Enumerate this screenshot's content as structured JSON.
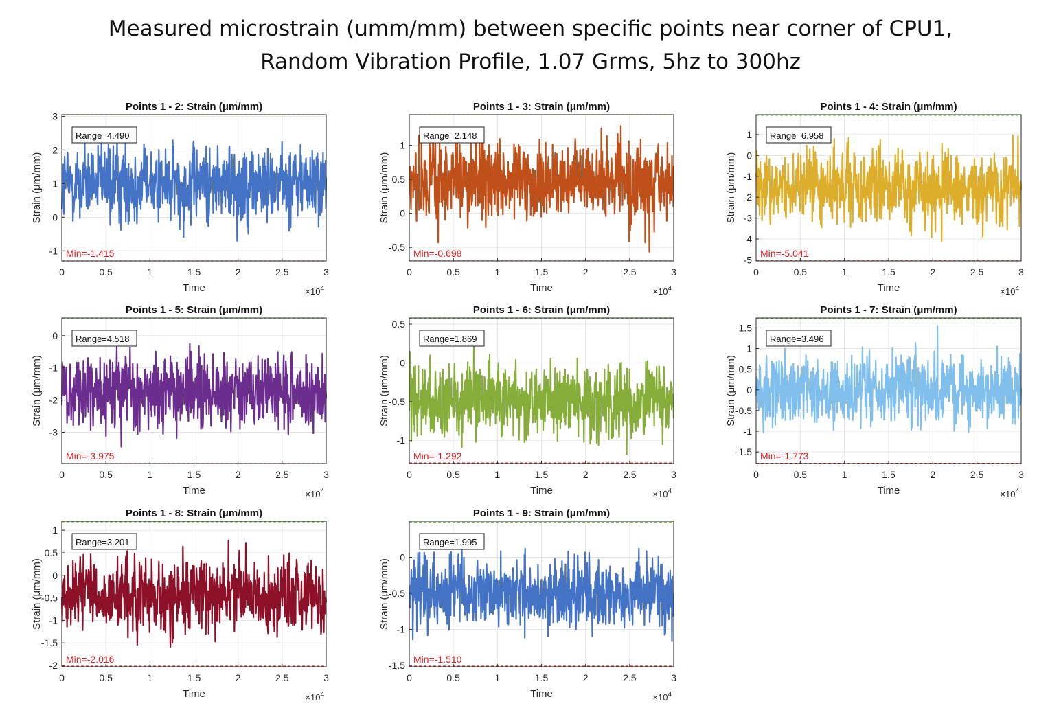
{
  "figure": {
    "title_line1": "Measured microstrain (umm/mm) between specific points near corner of CPU1,",
    "title_line2": "Random Vibration Profile, 1.07 Grms, 5hz to 300hz"
  },
  "chart_data": [
    {
      "type": "line",
      "title": "Points 1 - 2: Strain (μm/mm)",
      "xlabel": "Time",
      "ylabel": "Strain (μm/mm)",
      "x_multiplier": "×10^4",
      "xlim": [
        0,
        30000
      ],
      "xticks": [
        0,
        0.5,
        1,
        1.5,
        2,
        2.5,
        3
      ],
      "ylim": [
        -1.3,
        3.05
      ],
      "yticks": [
        -1,
        0,
        1,
        2,
        3
      ],
      "mean": 1.0,
      "amplitude": 1.45,
      "max": 3.075,
      "min": -1.415,
      "range_label": "Range=4.490",
      "min_label": "Min=-1.415",
      "color": "#4472C4",
      "grid": true
    },
    {
      "type": "line",
      "title": "Points 1 - 3: Strain (μm/mm)",
      "xlabel": "Time",
      "ylabel": "Strain (μm/mm)",
      "x_multiplier": "×10^4",
      "xlim": [
        0,
        30000
      ],
      "xticks": [
        0,
        0.5,
        1,
        1.5,
        2,
        2.5,
        3
      ],
      "ylim": [
        -0.7,
        1.45
      ],
      "yticks": [
        -0.5,
        0,
        0.5,
        1
      ],
      "mean": 0.45,
      "amplitude": 0.72,
      "max": 1.45,
      "min": -0.698,
      "range_label": "Range=2.148",
      "min_label": "Min=-0.698",
      "color": "#C0501A",
      "grid": true
    },
    {
      "type": "line",
      "title": "Points 1 - 4: Strain (μm/mm)",
      "xlabel": "Time",
      "ylabel": "Strain (μm/mm)",
      "x_multiplier": "×10^4",
      "xlim": [
        0,
        30000
      ],
      "xticks": [
        0,
        0.5,
        1,
        1.5,
        2,
        2.5,
        3
      ],
      "ylim": [
        -5.05,
        1.95
      ],
      "yticks": [
        -5,
        -4,
        -3,
        -2,
        -1,
        0,
        1
      ],
      "mean": -1.55,
      "amplitude": 2.25,
      "max": 1.917,
      "min": -5.041,
      "range_label": "Range=6.958",
      "min_label": "Min=-5.041",
      "color": "#DDAE2C",
      "grid": true
    },
    {
      "type": "line",
      "title": "Points 1 - 5: Strain (μm/mm)",
      "xlabel": "Time",
      "ylabel": "Strain (μm/mm)",
      "x_multiplier": "×10^4",
      "xlim": [
        0,
        30000
      ],
      "xticks": [
        0,
        0.5,
        1,
        1.5,
        2,
        2.5,
        3
      ],
      "ylim": [
        -3.97,
        0.55
      ],
      "yticks": [
        -3,
        -2,
        -1,
        0
      ],
      "mean": -1.75,
      "amplitude": 1.45,
      "max": 0.543,
      "min": -3.975,
      "range_label": "Range=4.518",
      "min_label": "Min=-3.975",
      "color": "#6B2D8E",
      "grid": true
    },
    {
      "type": "line",
      "title": "Points 1 - 6: Strain (μm/mm)",
      "xlabel": "Time",
      "ylabel": "Strain (μm/mm)",
      "x_multiplier": "×10^4",
      "xlim": [
        0,
        30000
      ],
      "xticks": [
        0,
        0.5,
        1,
        1.5,
        2,
        2.5,
        3
      ],
      "ylim": [
        -1.3,
        0.58
      ],
      "yticks": [
        -1,
        -0.5,
        0,
        0.5
      ],
      "mean": -0.5,
      "amplitude": 0.6,
      "max": 0.577,
      "min": -1.292,
      "range_label": "Range=1.869",
      "min_label": "Min=-1.292",
      "color": "#86AC3A",
      "grid": true
    },
    {
      "type": "line",
      "title": "Points 1 - 7: Strain (μm/mm)",
      "xlabel": "Time",
      "ylabel": "Strain (μm/mm)",
      "x_multiplier": "×10^4",
      "xlim": [
        0,
        30000
      ],
      "xticks": [
        0,
        0.5,
        1,
        1.5,
        2,
        2.5,
        3
      ],
      "ylim": [
        -1.78,
        1.74
      ],
      "yticks": [
        -1.5,
        -1,
        -0.5,
        0,
        0.5,
        1,
        1.5
      ],
      "mean": 0.0,
      "amplitude": 1.1,
      "max": 1.723,
      "min": -1.773,
      "range_label": "Range=3.496",
      "min_label": "Min=-1.773",
      "color": "#80BEEC",
      "grid": true
    },
    {
      "type": "line",
      "title": "Points 1 - 8: Strain (μm/mm)",
      "xlabel": "Time",
      "ylabel": "Strain (μm/mm)",
      "x_multiplier": "×10^4",
      "xlim": [
        0,
        30000
      ],
      "xticks": [
        0,
        0.5,
        1,
        1.5,
        2,
        2.5,
        3
      ],
      "ylim": [
        -2.03,
        1.2
      ],
      "yticks": [
        -2,
        -1.5,
        -1,
        -0.5,
        0,
        0.5,
        1
      ],
      "mean": -0.45,
      "amplitude": 1.0,
      "max": 1.185,
      "min": -2.016,
      "range_label": "Range=3.201",
      "min_label": "Min=-2.016",
      "color": "#8C1028",
      "grid": true
    },
    {
      "type": "line",
      "title": "Points 1 - 9: Strain (μm/mm)",
      "xlabel": "Time",
      "ylabel": "Strain (μm/mm)",
      "x_multiplier": "×10^4",
      "xlim": [
        0,
        30000
      ],
      "xticks": [
        0,
        0.5,
        1,
        1.5,
        2,
        2.5,
        3
      ],
      "ylim": [
        -1.52,
        0.5
      ],
      "yticks": [
        -1.5,
        -1,
        -0.5,
        0
      ],
      "mean": -0.5,
      "amplitude": 0.62,
      "max": 0.485,
      "min": -1.51,
      "range_label": "Range=1.995",
      "min_label": "Min=-1.510",
      "color": "#4472C4",
      "grid": true
    }
  ]
}
